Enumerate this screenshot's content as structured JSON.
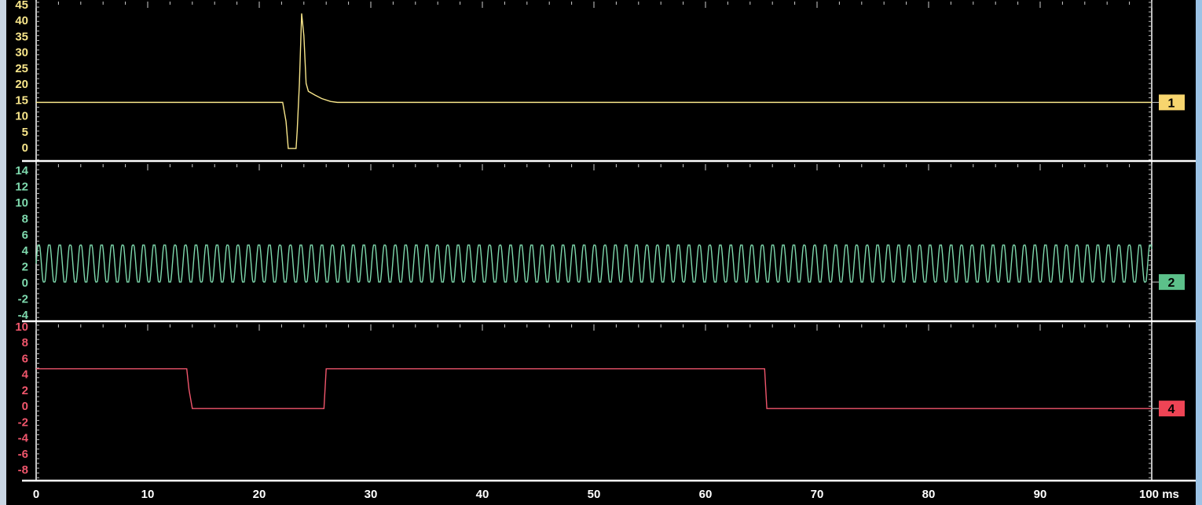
{
  "chart_data": [
    {
      "type": "line",
      "channel": "1",
      "color": "#f7e58a",
      "marker_color": "#f7d56e",
      "ylim": [
        -1,
        45
      ],
      "yticks": [
        "45",
        "40",
        "35",
        "30",
        "25",
        "20",
        "15",
        "10",
        "5",
        "0"
      ],
      "points": [
        [
          0,
          14
        ],
        [
          22.1,
          14
        ],
        [
          22.4,
          8
        ],
        [
          22.6,
          -0.5
        ],
        [
          23.3,
          -0.5
        ],
        [
          23.4,
          5
        ],
        [
          23.6,
          20
        ],
        [
          23.8,
          42
        ],
        [
          24.0,
          35
        ],
        [
          24.2,
          20
        ],
        [
          24.4,
          17.5
        ],
        [
          25,
          16.3
        ],
        [
          25.6,
          15.2
        ],
        [
          26.4,
          14.3
        ],
        [
          27,
          14
        ],
        [
          100,
          14
        ]
      ]
    },
    {
      "type": "line",
      "channel": "2",
      "color": "#7ed9ad",
      "marker_color": "#5cc08a",
      "ylim": [
        -4.5,
        14.5
      ],
      "yticks": [
        "14",
        "12",
        "10",
        "8",
        "6",
        "4",
        "2",
        "0",
        "-2",
        "-4"
      ],
      "waveform": {
        "shape": "sine",
        "period_ms": 0.94,
        "min": 0,
        "max": 4.6
      }
    },
    {
      "type": "line",
      "channel": "4",
      "color": "#f0566c",
      "marker_color": "#ee4455",
      "ylim": [
        -9,
        10
      ],
      "yticks": [
        "10",
        "8",
        "6",
        "4",
        "2",
        "0",
        "-2",
        "-4",
        "-6",
        "-8"
      ],
      "points": [
        [
          0,
          4.6
        ],
        [
          13.5,
          4.6
        ],
        [
          13.7,
          2
        ],
        [
          14,
          -0.4
        ],
        [
          25.8,
          -0.4
        ],
        [
          26.0,
          4.6
        ],
        [
          65.3,
          4.6
        ],
        [
          65.5,
          -0.4
        ],
        [
          100,
          -0.4
        ]
      ]
    }
  ],
  "xaxis": {
    "xlim": [
      0,
      100
    ],
    "ticks": [
      "0",
      "10",
      "20",
      "30",
      "40",
      "50",
      "60",
      "70",
      "80",
      "90",
      "100 ms"
    ]
  }
}
